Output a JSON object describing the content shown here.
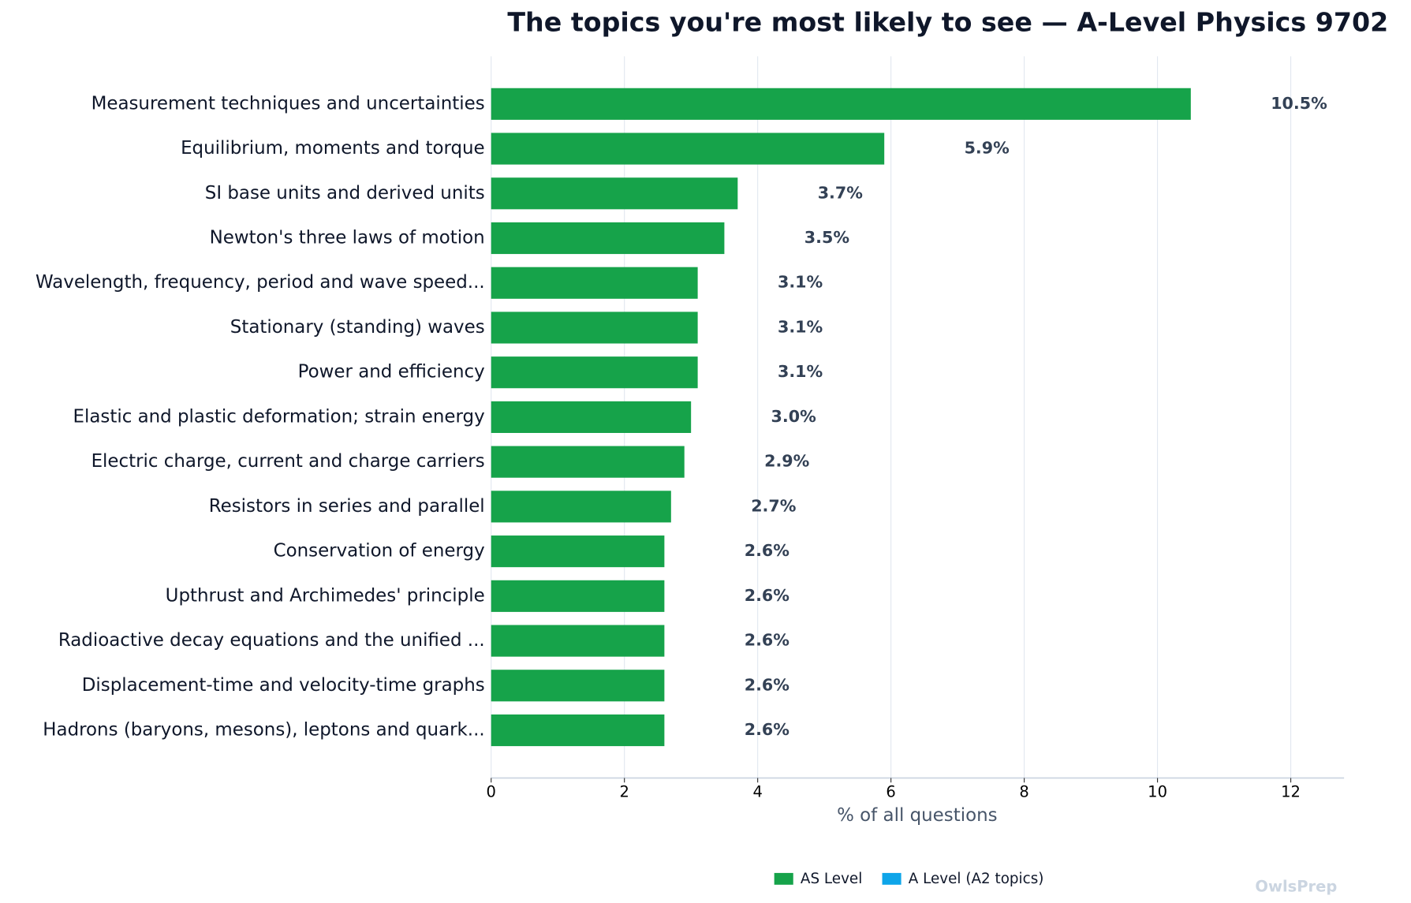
{
  "chart_data": {
    "type": "barh",
    "title": "The topics you're most likely to see — A-Level Physics 9702",
    "x_label": "% of all questions",
    "watermark": "OwlsPrep",
    "categories": [
      "Measurement techniques and uncertainties",
      "Equilibrium, moments and torque",
      "SI base units and derived units",
      "Newton's three laws of motion",
      "Wavelength, frequency, period and wave speed...",
      "Stationary (standing) waves",
      "Power and efficiency",
      "Elastic and plastic deformation; strain energy",
      "Electric charge, current and charge carriers",
      "Resistors in series and parallel",
      "Conservation of energy",
      "Upthrust and Archimedes' principle",
      "Radioactive decay equations and the unified ...",
      "Displacement-time and velocity-time graphs",
      "Hadrons (baryons, mesons), leptons and quark..."
    ],
    "series": [
      {
        "name": "AS Level",
        "color": "#16a34a",
        "values": [
          10.5,
          5.9,
          3.7,
          3.5,
          3.1,
          3.1,
          3.1,
          3.0,
          2.9,
          2.7,
          2.6,
          2.6,
          2.6,
          2.6,
          2.6
        ],
        "value_labels": [
          "10.5%",
          "5.9%",
          "3.7%",
          "3.5%",
          "3.1%",
          "3.1%",
          "3.1%",
          "3.0%",
          "2.9%",
          "2.7%",
          "2.6%",
          "2.6%",
          "2.6%",
          "2.6%",
          "2.6%"
        ]
      },
      {
        "name": "A Level (A2 topics)",
        "color": "#0ea5e9",
        "values": [
          null,
          null,
          null,
          null,
          null,
          null,
          null,
          null,
          null,
          null,
          null,
          null,
          null,
          null,
          null
        ]
      }
    ],
    "xlim": [
      0,
      12.8
    ],
    "xticks": [
      0,
      2,
      4,
      6,
      8,
      10,
      12
    ],
    "grid": true,
    "legend": "bottom"
  }
}
